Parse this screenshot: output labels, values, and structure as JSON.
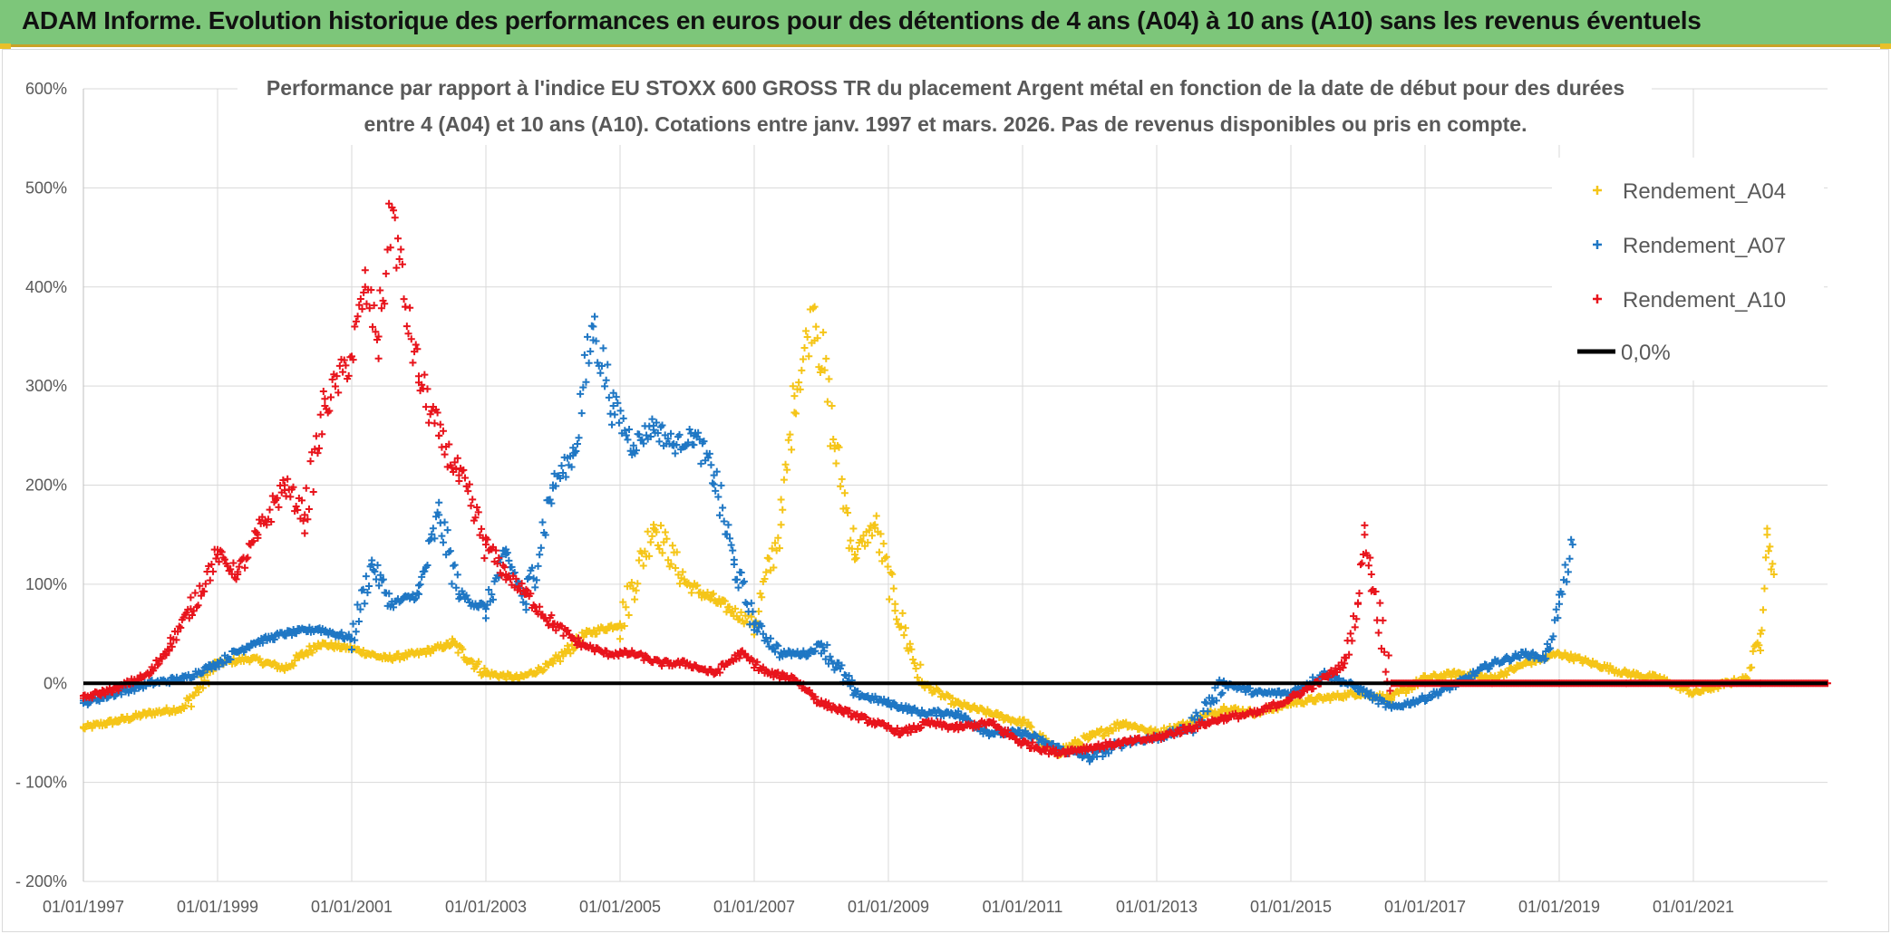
{
  "banner": {
    "title": "ADAM Informe. Evolution historique des performances en euros pour des détentions de 4 ans (A04) à 10 ans (A10) sans les revenus éventuels"
  },
  "colors": {
    "banner_bg": "#7dc67a",
    "a04": "#f5c518",
    "a07": "#1f77c4",
    "a10": "#e8141c",
    "zero_line": "#000000",
    "grid": "#d9d9d9"
  },
  "chart_data": {
    "type": "scatter",
    "title_line1": "Performance par rapport à l'indice EU STOXX 600 GROSS TR  du placement Argent métal en fonction de la date de début pour des durées",
    "title_line2": "entre 4 (A04) et 10 ans (A10). Cotations entre janv. 1997 et mars. 2026. Pas de revenus disponibles ou pris en compte.",
    "xlabel": "",
    "ylabel": "",
    "x_range": [
      1997.0,
      2023.0
    ],
    "ylim": [
      -200,
      600
    ],
    "y_ticks": [
      600,
      500,
      400,
      300,
      200,
      100,
      0,
      -100,
      -200
    ],
    "y_tick_labels": [
      "600%",
      "500%",
      "400%",
      "300%",
      "200%",
      "100%",
      "0%",
      "- 100%",
      "- 200%"
    ],
    "x_ticks": [
      1997,
      1999,
      2001,
      2003,
      2005,
      2007,
      2009,
      2011,
      2013,
      2015,
      2017,
      2019,
      2021
    ],
    "x_tick_labels": [
      "01/01/1997",
      "01/01/1999",
      "01/01/2001",
      "01/01/2003",
      "01/01/2005",
      "01/01/2007",
      "01/01/2009",
      "01/01/2011",
      "01/01/2013",
      "01/01/2015",
      "01/01/2017",
      "01/01/2019",
      "01/01/2021"
    ],
    "legend": [
      "Rendement_A04",
      "Rendement_A07",
      "Rendement_A10",
      "0,0%"
    ],
    "legend_position": "top-right",
    "series": [
      {
        "name": "Rendement_A04",
        "marker": "+",
        "x": [
          1997.0,
          1997.5,
          1998.0,
          1998.5,
          1999.0,
          1999.5,
          2000.0,
          2000.5,
          2001.0,
          2001.5,
          2002.0,
          2002.5,
          2003.0,
          2003.5,
          2004.0,
          2004.5,
          2005.0,
          2005.5,
          2006.0,
          2006.5,
          2007.0,
          2007.4,
          2007.6,
          2007.9,
          2008.2,
          2008.5,
          2008.8,
          2009.1,
          2009.5,
          2010.0,
          2010.5,
          2011.0,
          2011.5,
          2012.0,
          2012.5,
          2013.0,
          2013.5,
          2014.0,
          2014.5,
          2015.0,
          2015.5,
          2016.0,
          2016.5,
          2017.0,
          2017.5,
          2018.0,
          2018.5,
          2019.0,
          2019.5,
          2020.0,
          2020.5,
          2021.0,
          2021.5,
          2021.8,
          2022.0,
          2022.1,
          2022.2
        ],
        "values": [
          -45,
          -38,
          -30,
          -25,
          20,
          25,
          15,
          40,
          35,
          25,
          30,
          40,
          10,
          5,
          20,
          50,
          60,
          160,
          100,
          80,
          60,
          160,
          290,
          380,
          240,
          130,
          160,
          80,
          0,
          -20,
          -30,
          -40,
          -70,
          -55,
          -40,
          -50,
          -40,
          -25,
          -30,
          -20,
          -15,
          -10,
          -15,
          5,
          10,
          5,
          20,
          30,
          20,
          10,
          5,
          -10,
          0,
          5,
          50,
          150,
          110
        ]
      },
      {
        "name": "Rendement_A07",
        "marker": "+",
        "x": [
          1997.0,
          1997.5,
          1998.0,
          1998.5,
          1999.0,
          1999.5,
          2000.0,
          2000.5,
          2001.0,
          2001.3,
          2001.6,
          2002.0,
          2002.3,
          2002.6,
          2003.0,
          2003.3,
          2003.6,
          2004.0,
          2004.3,
          2004.6,
          2004.9,
          2005.2,
          2005.5,
          2005.8,
          2006.1,
          2006.4,
          2006.7,
          2007.0,
          2007.4,
          2007.8,
          2008.0,
          2008.5,
          2009.0,
          2009.5,
          2010.0,
          2010.5,
          2011.0,
          2011.5,
          2012.0,
          2012.5,
          2013.0,
          2013.5,
          2014.0,
          2014.5,
          2015.0,
          2015.5,
          2016.0,
          2016.5,
          2017.0,
          2017.5,
          2018.0,
          2018.5,
          2018.8,
          2019.0,
          2019.2
        ],
        "values": [
          -20,
          -10,
          0,
          5,
          20,
          40,
          50,
          55,
          45,
          120,
          80,
          90,
          170,
          90,
          75,
          130,
          80,
          200,
          230,
          360,
          280,
          240,
          260,
          240,
          250,
          210,
          120,
          60,
          30,
          30,
          40,
          -10,
          -20,
          -30,
          -30,
          -50,
          -50,
          -65,
          -75,
          -60,
          -55,
          -45,
          0,
          -10,
          -10,
          10,
          -5,
          -25,
          -15,
          0,
          20,
          30,
          25,
          80,
          140
        ]
      },
      {
        "name": "Rendement_A10",
        "marker": "+",
        "x": [
          1997.0,
          1997.5,
          1998.0,
          1998.3,
          1998.6,
          1999.0,
          1999.3,
          1999.6,
          2000.0,
          2000.3,
          2000.6,
          2001.0,
          2001.2,
          2001.4,
          2001.6,
          2001.8,
          2002.0,
          2002.3,
          2002.6,
          2003.0,
          2003.3,
          2003.6,
          2004.0,
          2004.4,
          2004.8,
          2005.2,
          2005.6,
          2006.0,
          2006.4,
          2006.8,
          2007.2,
          2007.6,
          2008.0,
          2008.4,
          2008.8,
          2009.2,
          2009.6,
          2010.0,
          2010.5,
          2011.0,
          2011.5,
          2012.0,
          2012.5,
          2013.0,
          2013.5,
          2014.0,
          2014.5,
          2015.0,
          2015.4,
          2015.8,
          2016.0,
          2016.1,
          2016.2,
          2016.5,
          2017.0,
          2018.0,
          2019.0,
          2020.0,
          2021.0,
          2022.0,
          2023.0
        ],
        "values": [
          -15,
          -5,
          10,
          40,
          75,
          130,
          110,
          150,
          200,
          170,
          280,
          330,
          400,
          350,
          480,
          380,
          310,
          250,
          210,
          140,
          110,
          90,
          60,
          40,
          30,
          30,
          20,
          20,
          10,
          30,
          10,
          5,
          -20,
          -30,
          -40,
          -50,
          -40,
          -45,
          -40,
          -60,
          -70,
          -65,
          -60,
          -55,
          -45,
          -35,
          -30,
          -15,
          0,
          20,
          80,
          150,
          110,
          0,
          0,
          0,
          0,
          0,
          0,
          0,
          0
        ]
      }
    ],
    "reference_line": {
      "name": "0,0%",
      "y": 0
    }
  }
}
